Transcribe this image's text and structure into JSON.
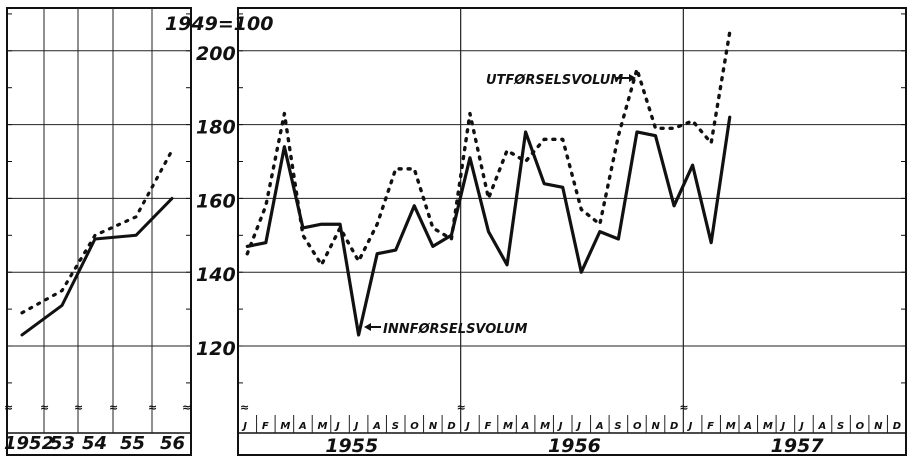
{
  "chart_data": [
    {
      "type": "line",
      "title": "1949=100",
      "x": [
        "1952",
        "53",
        "54",
        "55",
        "56"
      ],
      "ylim": [
        100,
        210
      ],
      "yticks": [
        120,
        140,
        160,
        180,
        200
      ],
      "grid": true,
      "series": [
        {
          "name": "",
          "style": "solid",
          "values": [
            123,
            131,
            149,
            150,
            160
          ]
        },
        {
          "name": "",
          "style": "dotted",
          "values": [
            129,
            135,
            150,
            155,
            173
          ]
        }
      ]
    },
    {
      "type": "line",
      "ylim": [
        100,
        210
      ],
      "yticks": [
        120,
        140,
        160,
        180,
        200
      ],
      "grid": true,
      "years": [
        "1955",
        "1956",
        "1957"
      ],
      "months": [
        "J",
        "F",
        "M",
        "A",
        "M",
        "J",
        "J",
        "A",
        "S",
        "O",
        "N",
        "D"
      ],
      "series": [
        {
          "name": "INNFØRSELSVOLUM",
          "style": "solid",
          "values": [
            147,
            148,
            174,
            152,
            153,
            153,
            123,
            145,
            146,
            158,
            147,
            150,
            171,
            151,
            142,
            178,
            164,
            163,
            140,
            151,
            149,
            178,
            177,
            158,
            169,
            148,
            182
          ]
        },
        {
          "name": "UTFØRSELSVOLUM",
          "style": "dotted",
          "values": [
            145,
            158,
            183,
            150,
            142,
            152,
            143,
            153,
            168,
            168,
            152,
            149,
            183,
            160,
            173,
            170,
            176,
            176,
            157,
            153,
            177,
            195,
            179,
            179,
            181,
            175,
            205
          ]
        }
      ]
    }
  ]
}
